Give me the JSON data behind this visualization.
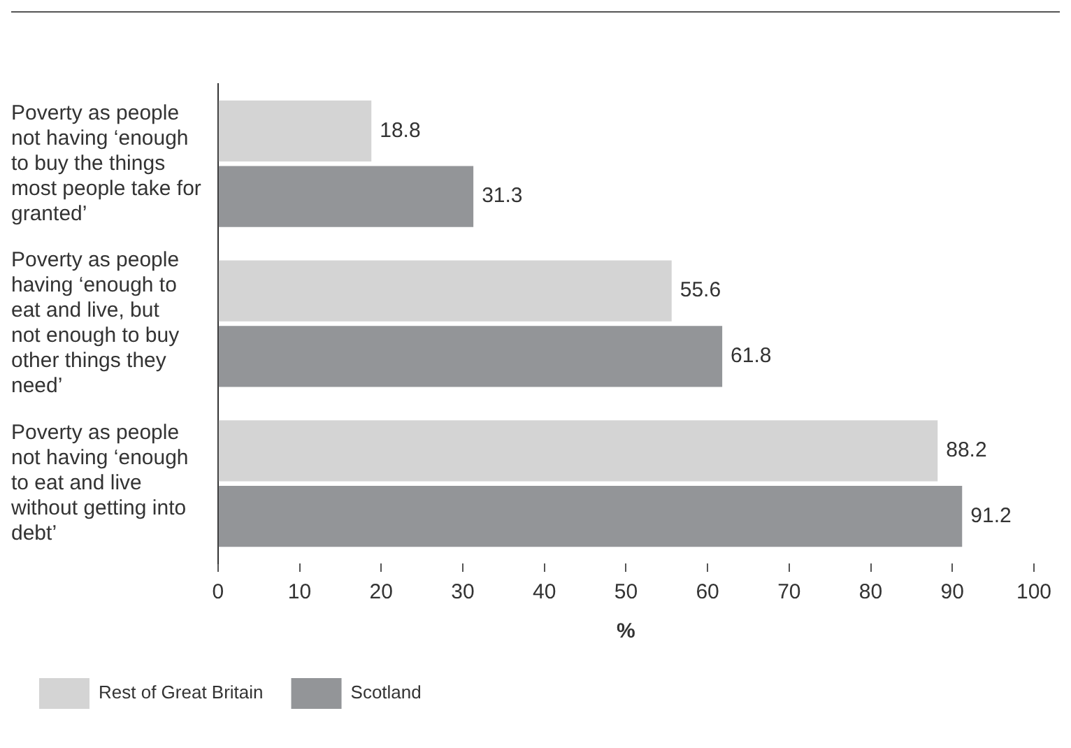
{
  "chart_data": {
    "type": "bar",
    "orientation": "horizontal",
    "categories": [
      "Poverty as people not having ‘enough to buy the things most people take for granted’",
      "Poverty as people having ‘enough to eat and live, but not enough to buy other things they need’",
      "Poverty as people not having ‘enough to eat and live without getting into debt’"
    ],
    "series": [
      {
        "name": "Rest of Great Britain",
        "color": "#d4d4d4",
        "values": [
          18.8,
          55.6,
          88.2
        ]
      },
      {
        "name": "Scotland",
        "color": "#939598",
        "values": [
          31.3,
          61.8,
          91.2
        ]
      }
    ],
    "xlabel": "%",
    "xlim": [
      0,
      100
    ],
    "xticks": [
      0,
      10,
      20,
      30,
      40,
      50,
      60,
      70,
      80,
      90,
      100
    ],
    "data_labels": true,
    "grid": false,
    "legend": "bottom"
  }
}
